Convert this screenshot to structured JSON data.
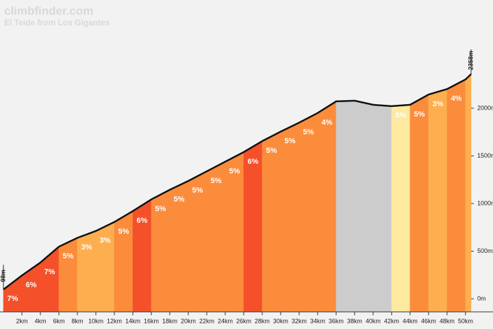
{
  "header": {
    "site": "climbfinder.com",
    "climb": "El Teide from Los Gigantes"
  },
  "chart_data": {
    "type": "area",
    "x": [
      0,
      2,
      4,
      6,
      8,
      10,
      12,
      14,
      16,
      18,
      20,
      22,
      24,
      26,
      28,
      30,
      32,
      34,
      36,
      38,
      40,
      42,
      44,
      46,
      48,
      50,
      50.6
    ],
    "values": [
      98,
      245,
      381,
      547,
      640,
      712,
      806,
      921,
      1043,
      1144,
      1237,
      1338,
      1439,
      1540,
      1655,
      1755,
      1849,
      1950,
      2072,
      2079,
      2036,
      2022,
      2036,
      2144,
      2201,
      2302,
      2358
    ],
    "endpoint_labels": [
      "98m",
      "2358m"
    ],
    "line_color": "#111111",
    "segments": {
      "values": [
        7,
        6,
        7,
        5,
        3,
        3,
        5,
        6,
        5,
        5,
        5,
        5,
        5,
        6,
        5,
        5,
        5,
        4,
        null,
        null,
        null,
        0,
        5,
        3,
        4,
        null
      ],
      "value_labels": [
        "7%",
        "6%",
        "7%",
        "5%",
        "3%",
        "3%",
        "5%",
        "6%",
        "5%",
        "5%",
        "5%",
        "5%",
        "5%",
        "6%",
        "5%",
        "5%",
        "5%",
        "4%",
        null,
        null,
        null,
        "0%",
        "5%",
        "3%",
        "4%",
        null
      ],
      "colors": [
        "#f4502a",
        "#f4502a",
        "#f4502a",
        "#fb8c3c",
        "#fdaf4f",
        "#fdaf4f",
        "#fb8c3c",
        "#f4502a",
        "#fb8c3c",
        "#fb8c3c",
        "#fb8c3c",
        "#fb8c3c",
        "#fb8c3c",
        "#f4502a",
        "#fb8c3c",
        "#fb8c3c",
        "#fb8c3c",
        "#fb8c3c",
        "#cccccc",
        "#cccccc",
        "#cccccc",
        "#fde9a0",
        "#fb8c3c",
        "#fdaf4f",
        "#fb8c3c",
        "#fdaf4f"
      ]
    },
    "xlim": [
      0,
      50.6
    ],
    "ylim": [
      -137,
      2848
    ],
    "xticks": [
      {
        "value": 2,
        "label": "2km"
      },
      {
        "value": 4,
        "label": "4km"
      },
      {
        "value": 6,
        "label": "6km"
      },
      {
        "value": 8,
        "label": "8km"
      },
      {
        "value": 10,
        "label": "10km"
      },
      {
        "value": 12,
        "label": "12km"
      },
      {
        "value": 14,
        "label": "14km"
      },
      {
        "value": 16,
        "label": "16km"
      },
      {
        "value": 18,
        "label": "18km"
      },
      {
        "value": 20,
        "label": "20km"
      },
      {
        "value": 22,
        "label": "22km"
      },
      {
        "value": 24,
        "label": "24km"
      },
      {
        "value": 26,
        "label": "26km"
      },
      {
        "value": 28,
        "label": "28km"
      },
      {
        "value": 30,
        "label": "30km"
      },
      {
        "value": 32,
        "label": "32km"
      },
      {
        "value": 34,
        "label": "34km"
      },
      {
        "value": 36,
        "label": "36km"
      },
      {
        "value": 38,
        "label": "38km"
      },
      {
        "value": 40,
        "label": "40km"
      },
      {
        "value": 42,
        "label": "42km"
      },
      {
        "value": 44,
        "label": "44km"
      },
      {
        "value": 46,
        "label": "46km"
      },
      {
        "value": 48,
        "label": "48km"
      },
      {
        "value": 50,
        "label": "50km"
      }
    ],
    "yticks": [
      {
        "value": 0,
        "label": "0m"
      },
      {
        "value": 500,
        "label": "500m"
      },
      {
        "value": 1000,
        "label": "1000m"
      },
      {
        "value": 1500,
        "label": "1500m"
      },
      {
        "value": 2000,
        "label": "2000m"
      }
    ]
  }
}
